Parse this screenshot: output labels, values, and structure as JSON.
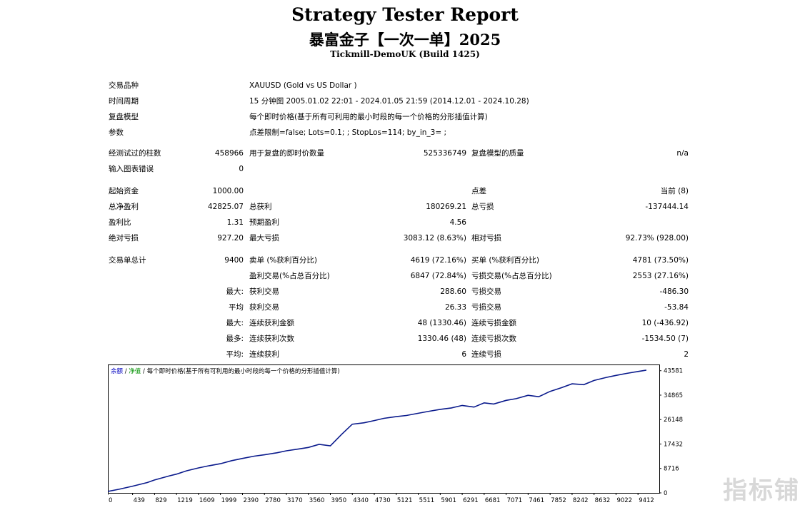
{
  "header": {
    "title": "Strategy Tester Report",
    "expert": "暴富金子【一次一单】2025",
    "server": "Tickmill-DemoUK (Build 1425)"
  },
  "settings": [
    {
      "label": "交易品种",
      "value": "XAUUSD (Gold vs US Dollar )"
    },
    {
      "label": "时间周期",
      "value": "15 分钟图 2005.01.02 22:01 - 2024.01.05 21:59 (2014.12.01 - 2024.10.28)"
    },
    {
      "label": "复盘模型",
      "value": "每个即时价格(基于所有可利用的最小时段的每一个价格的分形插值计算)"
    },
    {
      "label": "参数",
      "value": "点差限制=false; Lots=0.1; ; StopLos=114; by_in_3= ;"
    }
  ],
  "stats": {
    "bars_label": "经测试过的柱数",
    "bars": "458966",
    "ticks_label": "用于复盘的即时价数量",
    "ticks": "525336749",
    "quality_label": "复盘模型的质量",
    "quality": "n/a",
    "errors_label": "输入图表错误",
    "errors": "0",
    "deposit_label": "起始资金",
    "deposit": "1000.00",
    "spread_label": "点差",
    "spread": "当前 (8)",
    "net_profit_label": "总净盈利",
    "net_profit": "42825.07",
    "gross_profit_label": "总获利",
    "gross_profit": "180269.21",
    "gross_loss_label": "总亏损",
    "gross_loss": "-137444.14",
    "profit_factor_label": "盈利比",
    "profit_factor": "1.31",
    "expected_payoff_label": "预期盈利",
    "expected_payoff": "4.56",
    "abs_drawdown_label": "绝对亏损",
    "abs_drawdown": "927.20",
    "max_drawdown_label": "最大亏损",
    "max_drawdown": "3083.12 (8.63%)",
    "rel_drawdown_label": "相对亏损",
    "rel_drawdown": "92.73% (928.00)",
    "total_trades_label": "交易单总计",
    "total_trades": "9400",
    "short_label": "卖单 (%获利百分比)",
    "short": "4619 (72.16%)",
    "long_label": "买单 (%获利百分比)",
    "long": "4781 (73.50%)",
    "profit_trades_label": "盈利交易(%占总百分比)",
    "profit_trades": "6847 (72.84%)",
    "loss_trades_label": "亏损交易(%占总百分比)",
    "loss_trades": "2553 (27.16%)",
    "max_label": "最大:",
    "largest_profit_label": "获利交易",
    "largest_profit": "288.60",
    "largest_loss_label": "亏损交易",
    "largest_loss": "-486.30",
    "avg_label": "平均",
    "avg_profit_label": "获利交易",
    "avg_profit": "26.33",
    "avg_loss_label": "亏损交易",
    "avg_loss": "-53.84",
    "max2_label": "最大:",
    "max_consec_wins_label": "连续获利金额",
    "max_consec_wins": "48 (1330.46)",
    "max_consec_losses_label": "连续亏损金额",
    "max_consec_losses": "10 (-436.92)",
    "most_label": "最多:",
    "max_consec_profit_label": "连续获利次数",
    "max_consec_profit": "1330.46 (48)",
    "max_consec_loss_label": "连续亏损次数",
    "max_consec_loss": "-1534.50 (7)",
    "avg2_label": "平均:",
    "avg_consec_wins_label": "连续获利",
    "avg_consec_wins": "6",
    "avg_consec_losses_label": "连续亏损",
    "avg_consec_losses": "2"
  },
  "chart_legend": {
    "balance": "余额",
    "sep1": " / ",
    "equity": "净值",
    "sep2": " / ",
    "model": "每个即时价格(基于所有可利用的最小时段的每一个价格的分形插值计算)"
  },
  "colors": {
    "line": "#0a1a8c",
    "legend_balance": "#0000c0",
    "legend_equity": "#009000",
    "axis": "#000000"
  },
  "watermark": "指标铺",
  "chart_data": {
    "type": "line",
    "title": "",
    "xlabel": "",
    "ylabel": "",
    "x_ticks": [
      "0",
      "439",
      "829",
      "1219",
      "1609",
      "1999",
      "2390",
      "2780",
      "3170",
      "3560",
      "3950",
      "4340",
      "4730",
      "5121",
      "5511",
      "5901",
      "6291",
      "6681",
      "7071",
      "7461",
      "7852",
      "8242",
      "8632",
      "9022",
      "9412"
    ],
    "y_ticks": [
      "0",
      "8716",
      "17432",
      "26148",
      "34865",
      "43581"
    ],
    "xlim": [
      0,
      9790
    ],
    "ylim": [
      0,
      45800
    ],
    "series": [
      {
        "x": [
          0,
          200,
          439,
          700,
          829,
          1100,
          1219,
          1400,
          1609,
          1800,
          1999,
          2200,
          2390,
          2600,
          2780,
          3000,
          3170,
          3400,
          3560,
          3750,
          3950,
          4150,
          4340,
          4550,
          4730,
          4900,
          5121,
          5300,
          5511,
          5700,
          5901,
          6100,
          6291,
          6500,
          6681,
          6850,
          7071,
          7250,
          7461,
          7650,
          7852,
          8050,
          8242,
          8450,
          8632,
          8850,
          9022,
          9200,
          9412,
          9560
        ],
        "y": [
          500,
          1300,
          2400,
          3700,
          4600,
          6100,
          6700,
          7900,
          8900,
          9700,
          10400,
          11500,
          12300,
          13100,
          13600,
          14300,
          15000,
          15700,
          16200,
          17300,
          16800,
          20900,
          24500,
          25000,
          25800,
          26600,
          27200,
          27600,
          28400,
          29100,
          29800,
          30300,
          31200,
          30600,
          32100,
          31700,
          33000,
          33600,
          34800,
          34300,
          36200,
          37500,
          38900,
          38600,
          40100,
          41200,
          41900,
          42600,
          43300,
          43800
        ]
      }
    ]
  }
}
